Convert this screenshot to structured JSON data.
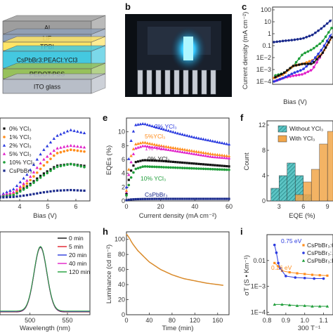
{
  "figure": {
    "panels": {
      "a": {
        "letter": "",
        "layers": [
          {
            "label": "Al",
            "color": "#9e9e9e"
          },
          {
            "label": "LiF",
            "color": "#8fa0b8"
          },
          {
            "label": "TPBI",
            "color": "#ffe566"
          },
          {
            "label": "CsPbBr3:PEACl:YCl3",
            "color": "#44c8e0"
          },
          {
            "label": "PEDOT:PSS",
            "color": "#97c15b"
          },
          {
            "label": "ITO glass",
            "color": "#b8bec8"
          }
        ]
      },
      "b": {
        "letter": "b"
      },
      "c": {
        "letter": "c",
        "ylabel": "Current density (mA cm⁻²)",
        "xlabel": "Bias (V)",
        "yticks": [
          "100",
          "10",
          "1",
          "0.1",
          "1E−2",
          "1E−3",
          "1E−4"
        ]
      },
      "d": {
        "letter": "",
        "xlabel": "Bias (V)",
        "xticks": [
          "4",
          "5",
          "6"
        ],
        "legend": [
          "0% YCl₃",
          "1% YCl₃",
          "2% YCl₃",
          "5% YCl₃",
          "10% YCl₃",
          "CsPbBr₃"
        ]
      },
      "e": {
        "letter": "e",
        "ylabel": "EQEs (%)",
        "xlabel": "Current density (mA cm⁻²)",
        "yticks": [
          "0",
          "2",
          "4",
          "6",
          "8",
          "10"
        ],
        "xticks": [
          "0",
          "20",
          "40",
          "60"
        ],
        "labels": [
          "2% YCl₃",
          "5%YCl₃",
          "1% YCl₃",
          "0% YCl₃",
          "10% YCl₃",
          "CsPbBr₃"
        ]
      },
      "f": {
        "letter": "f",
        "ylabel": "Count",
        "xlabel": "EQE (%)",
        "yticks": [
          "0",
          "4",
          "8",
          "12"
        ],
        "xticks": [
          "3",
          "6",
          "9"
        ],
        "legend": [
          "Without YCl₃",
          "With YCl₃"
        ]
      },
      "g": {
        "letter": "",
        "xlabel": "Wavelength (nm)",
        "xticks": [
          "500",
          "550"
        ],
        "legend": [
          "0 min",
          "5 min",
          "20 min",
          "40 min",
          "120 min"
        ]
      },
      "h": {
        "letter": "h",
        "ylabel": "Luminance (cd m⁻²)",
        "xlabel": "Time (min)",
        "yticks": [
          "0",
          "20",
          "40",
          "60",
          "80",
          "100"
        ],
        "xticks": [
          "0",
          "40",
          "80",
          "120",
          "160"
        ]
      },
      "i": {
        "letter": "i",
        "ylabel": "σT (S • Km⁻¹)",
        "xlabel": "300 T⁻¹",
        "yticks": [
          "0.01",
          "1E−3",
          "1E−4"
        ],
        "xticks": [
          "0.8",
          "0.9",
          "1.0",
          "1.1"
        ],
        "legend": [
          "CsPbBr₃:0",
          "CsPbBr₃:…",
          "CsPbBr₃:Pl…"
        ],
        "annotations": [
          "0.75 eV",
          "0.26 eV"
        ]
      }
    }
  },
  "chart_data": [
    {
      "type": "line",
      "panel": "c",
      "title": "",
      "xlabel": "Bias (V)",
      "ylabel": "Current density (mA cm⁻²)",
      "yscale": "log",
      "ylim": [
        0.0001,
        100
      ],
      "series": [
        {
          "color": "#1a2a8c",
          "x": [
            0,
            1,
            2,
            3,
            4,
            5,
            6
          ],
          "y": [
            0.2,
            0.25,
            0.3,
            0.4,
            0.8,
            3,
            15
          ]
        },
        {
          "color": "#1f9e3a",
          "x": [
            0,
            1,
            2,
            3,
            4,
            5,
            6
          ],
          "y": [
            0.0003,
            0.0005,
            0.002,
            0.02,
            0.05,
            0.2,
            3
          ]
        },
        {
          "color": "#ff8c1a",
          "x": [
            0,
            1,
            2,
            3,
            4,
            5,
            6
          ],
          "y": [
            0.0002,
            0.0004,
            0.002,
            0.003,
            0.006,
            0.02,
            0.5
          ]
        },
        {
          "color": "#e020c8",
          "x": [
            0,
            1,
            2,
            3,
            4,
            5,
            6
          ],
          "y": [
            0.0001,
            0.0002,
            0.0003,
            0.0004,
            0.001,
            0.02,
            0.5
          ]
        },
        {
          "color": "#2a3adf",
          "x": [
            0,
            1,
            2,
            3,
            4,
            5,
            6
          ],
          "y": [
            0.0001,
            0.0002,
            0.0005,
            0.001,
            0.005,
            0.05,
            1
          ]
        },
        {
          "color": "#111111",
          "x": [
            0,
            1,
            2,
            3,
            4,
            5,
            6
          ],
          "y": [
            0.0002,
            0.0005,
            0.002,
            0.003,
            0.003,
            0.02,
            0.5
          ]
        }
      ]
    },
    {
      "type": "line",
      "panel": "d",
      "title": "",
      "xlabel": "Bias (V)",
      "ylabel": "",
      "xlim": [
        3.3,
        6.5
      ],
      "series": [
        {
          "name": "0% YCl₃",
          "color": "#111111",
          "x": [
            3.3,
            3.8,
            4.3,
            4.8,
            5.3,
            5.8,
            6.3
          ],
          "y": [
            0.2,
            0.6,
            2.0,
            3.8,
            5.2,
            5.5,
            5.2
          ]
        },
        {
          "name": "1% YCl₃",
          "color": "#ff8c1a",
          "x": [
            3.3,
            3.8,
            4.3,
            4.8,
            5.3,
            5.8,
            6.3
          ],
          "y": [
            0.3,
            0.8,
            2.5,
            5.0,
            7.2,
            7.8,
            7.5
          ]
        },
        {
          "name": "2% YCl₃",
          "color": "#2a3adf",
          "x": [
            3.3,
            3.8,
            4.3,
            4.8,
            5.3,
            5.8,
            6.3
          ],
          "y": [
            0.5,
            1.5,
            4.0,
            7.5,
            10.0,
            11.0,
            10.5
          ]
        },
        {
          "name": "5% YCl₃",
          "color": "#e020c8",
          "x": [
            3.3,
            3.8,
            4.3,
            4.8,
            5.3,
            5.8,
            6.3
          ],
          "y": [
            0.4,
            1.0,
            3.0,
            6.0,
            8.0,
            8.5,
            8.2
          ]
        },
        {
          "name": "10% YCl₃",
          "color": "#1f9e3a",
          "x": [
            3.3,
            3.8,
            4.3,
            4.8,
            5.3,
            5.8,
            6.3
          ],
          "y": [
            0.2,
            0.5,
            1.8,
            3.5,
            5.0,
            5.5,
            5.0
          ]
        },
        {
          "name": "CsPbBr₃",
          "color": "#1a2a8c",
          "x": [
            3.3,
            3.8,
            4.3,
            4.8,
            5.3,
            5.8,
            6.3
          ],
          "y": [
            0.1,
            0.2,
            0.5,
            0.9,
            1.2,
            1.3,
            1.2
          ]
        }
      ]
    },
    {
      "type": "line",
      "panel": "e",
      "title": "",
      "xlabel": "Current density (mA cm⁻²)",
      "ylabel": "EQEs (%)",
      "xlim": [
        0,
        60
      ],
      "ylim": [
        0,
        12
      ],
      "series": [
        {
          "name": "2% YCl₃",
          "color": "#2a3adf",
          "x": [
            0,
            2,
            5,
            10,
            20,
            30,
            40,
            50,
            60
          ],
          "y": [
            2,
            8,
            11,
            11.2,
            10.5,
            9.8,
            9.2,
            8.7,
            8.2
          ]
        },
        {
          "name": "5%YCl₃",
          "color": "#ff8c1a",
          "x": [
            0,
            2,
            5,
            10,
            20,
            30,
            40,
            50,
            60
          ],
          "y": [
            1.5,
            6,
            8.2,
            8.5,
            8.0,
            7.6,
            7.2,
            6.8,
            6.5
          ]
        },
        {
          "name": "1% YCl₃",
          "color": "#e020c8",
          "x": [
            0,
            2,
            5,
            10,
            20,
            30,
            40,
            50,
            60
          ],
          "y": [
            1.2,
            5,
            7.6,
            8.0,
            7.6,
            7.2,
            6.8,
            6.4,
            6.2
          ]
        },
        {
          "name": "0% YCl₃",
          "color": "#111111",
          "x": [
            0,
            2,
            5,
            10,
            20,
            30,
            40,
            50,
            60
          ],
          "y": [
            1,
            4,
            5.6,
            5.9,
            5.8,
            5.6,
            5.4,
            5.2,
            5.0
          ]
        },
        {
          "name": "10% YCl₃",
          "color": "#1f9e3a",
          "x": [
            0,
            2,
            5,
            10,
            20,
            30,
            40,
            50,
            60
          ],
          "y": [
            0.8,
            3,
            4.6,
            5.0,
            4.9,
            4.8,
            4.7,
            4.6,
            4.5
          ]
        },
        {
          "name": "CsPbBr₃",
          "color": "#1a2a8c",
          "x": [
            0,
            2,
            5,
            10,
            20,
            30,
            40,
            50,
            60
          ],
          "y": [
            0.1,
            0.2,
            0.25,
            0.28,
            0.3,
            0.3,
            0.3,
            0.3,
            0.3
          ]
        }
      ]
    },
    {
      "type": "bar",
      "panel": "f",
      "title": "",
      "xlabel": "EQE (%)",
      "ylabel": "Count",
      "ylim": [
        0,
        12
      ],
      "series": [
        {
          "name": "Without YCl₃",
          "color": "#2aa9a9",
          "bins": [
            2.5,
            3.5,
            4.5,
            5.5,
            6.5
          ],
          "values": [
            2,
            4,
            6,
            4,
            1
          ]
        },
        {
          "name": "With YCl₃",
          "color": "#f2a64a",
          "bins": [
            5.5,
            6.5,
            7.5,
            8.5,
            9.5
          ],
          "values": [
            1,
            3,
            5,
            9,
            11
          ]
        }
      ]
    },
    {
      "type": "line",
      "panel": "g",
      "title": "",
      "xlabel": "Wavelength (nm)",
      "ylabel": "",
      "xlim": [
        460,
        580
      ],
      "series": [
        {
          "name": "0 min",
          "color": "#111111"
        },
        {
          "name": "5 min",
          "color": "#e0202a"
        },
        {
          "name": "20 min",
          "color": "#2a3adf"
        },
        {
          "name": "40 min",
          "color": "#e020c8"
        },
        {
          "name": "120 min",
          "color": "#1f9e3a"
        }
      ],
      "peak": 514,
      "fwhm": 20
    },
    {
      "type": "line",
      "panel": "h",
      "title": "",
      "xlabel": "Time (min)",
      "ylabel": "Luminance (cd m⁻²)",
      "xlim": [
        0,
        180
      ],
      "ylim": [
        0,
        110
      ],
      "series": [
        {
          "color": "#d98a2a",
          "x": [
            0,
            5,
            10,
            20,
            40,
            60,
            80,
            100,
            120,
            140,
            160,
            170
          ],
          "y": [
            107,
            102,
            95,
            85,
            70,
            60,
            53,
            48,
            45,
            42,
            40,
            39
          ]
        }
      ]
    },
    {
      "type": "scatter",
      "panel": "i",
      "title": "",
      "xlabel": "300 T⁻¹",
      "ylabel": "σT (S • Km⁻¹)",
      "yscale": "log",
      "series": [
        {
          "name": "CsPbBr₃:0",
          "color": "#ff8c1a",
          "x": [
            0.84,
            0.86,
            0.88,
            0.92,
            0.96,
            1.0,
            1.04,
            1.08,
            1.12
          ],
          "y": [
            0.008,
            0.006,
            0.004,
            0.0035,
            0.0032,
            0.003,
            0.0028,
            0.0027,
            0.0026
          ]
        },
        {
          "name": "CsPbBr₃:…",
          "color": "#2a3adf",
          "x": [
            0.84,
            0.85,
            0.86,
            0.87,
            0.9,
            0.95,
            1.0,
            1.05,
            1.1
          ],
          "y": [
            0.04,
            0.02,
            0.008,
            0.005,
            0.0025,
            0.0022,
            0.0021,
            0.002,
            0.002
          ]
        },
        {
          "name": "CsPbBr₃:Pl…",
          "color": "#1f9e3a",
          "x": [
            0.84,
            0.88,
            0.92,
            0.96,
            1.0,
            1.04,
            1.08,
            1.12
          ],
          "y": [
            0.0002,
            0.0002,
            0.00019,
            0.00018,
            0.00018,
            0.00017,
            0.00017,
            0.00017
          ]
        }
      ]
    }
  ]
}
